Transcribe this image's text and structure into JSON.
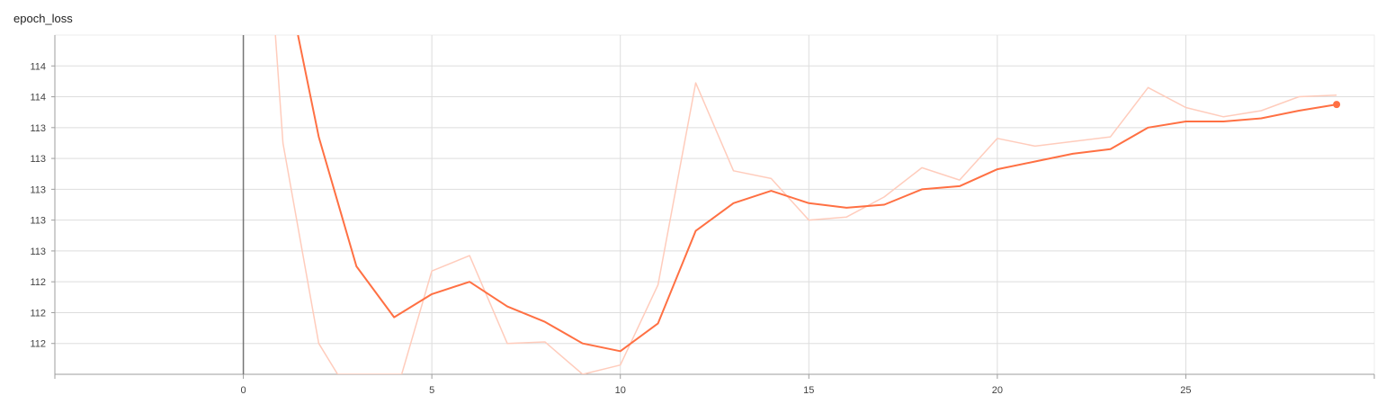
{
  "chart_data": {
    "type": "line",
    "title": "epoch_loss",
    "xlabel": "",
    "ylabel": "",
    "x_ticks": [
      0,
      5,
      10,
      15,
      20,
      25
    ],
    "y_tick_labels": [
      "114",
      "114",
      "113",
      "113",
      "113",
      "113",
      "113",
      "112",
      "112",
      "112"
    ],
    "y_tick_values": [
      114.4,
      114.2,
      114.0,
      113.8,
      113.6,
      113.4,
      113.2,
      113.0,
      112.8,
      112.6
    ],
    "xlim": [
      -5,
      30
    ],
    "ylim": [
      112.4,
      114.6
    ],
    "grid": true,
    "colors": {
      "smoothed": "#ff7043",
      "raw": "#ffccbc",
      "axis": "#9e9e9e",
      "grid": "#dddddd"
    },
    "series": [
      {
        "role": "raw",
        "x": [
          0.85,
          1.05,
          2,
          2.5,
          4,
          4.2,
          5,
          6,
          7,
          8,
          9,
          10,
          11,
          12,
          13,
          14,
          15,
          16,
          17,
          18,
          19,
          20,
          21,
          22,
          23,
          24,
          25,
          26,
          27,
          28,
          29
        ],
        "values": [
          114.6,
          113.9,
          112.6,
          112.4,
          112.4,
          112.4,
          113.07,
          113.17,
          112.6,
          112.61,
          112.4,
          112.46,
          112.98,
          114.29,
          113.72,
          113.67,
          113.4,
          113.42,
          113.55,
          113.74,
          113.66,
          113.93,
          113.88,
          113.91,
          113.94,
          114.26,
          114.13,
          114.07,
          114.11,
          114.2,
          114.21
        ]
      },
      {
        "role": "smoothed",
        "x": [
          1.45,
          2,
          3,
          4,
          5,
          6,
          7,
          8,
          9,
          10,
          11,
          12,
          13,
          14,
          15,
          16,
          17,
          18,
          19,
          20,
          21,
          22,
          23,
          24,
          25,
          26,
          27,
          28,
          29
        ],
        "values": [
          114.6,
          113.94,
          113.1,
          112.77,
          112.92,
          113.0,
          112.84,
          112.74,
          112.6,
          112.55,
          112.73,
          113.33,
          113.51,
          113.59,
          113.51,
          113.48,
          113.5,
          113.6,
          113.62,
          113.73,
          113.78,
          113.83,
          113.86,
          114.0,
          114.04,
          114.04,
          114.06,
          114.11,
          114.15
        ]
      }
    ]
  }
}
